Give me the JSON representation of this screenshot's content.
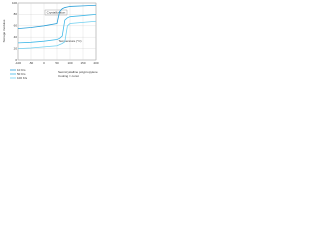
{
  "chart_data": {
    "type": "line",
    "y_label": "Storage modulus",
    "x_label": "Temperature (°C)",
    "annotation": "Crystallization",
    "note": [
      "Semicrystalline polypropylene",
      "Cooling = const"
    ],
    "x": [
      -100,
      -50,
      0,
      50,
      60,
      70,
      80,
      90,
      100,
      150,
      200
    ],
    "series": [
      {
        "name": "10 K/s",
        "color": "#2a9fd8",
        "values": [
          55,
          57,
          60,
          64,
          85,
          90,
          92,
          93,
          94,
          95,
          96
        ]
      },
      {
        "name": "50 K/s",
        "color": "#41b9e8",
        "values": [
          30,
          31,
          33,
          36,
          38,
          42,
          70,
          74,
          76,
          78,
          80
        ]
      },
      {
        "name": "100 K/s",
        "color": "#6fd0f0",
        "values": [
          20,
          21,
          23,
          25,
          27,
          29,
          32,
          60,
          64,
          66,
          68
        ]
      }
    ],
    "xlim": [
      -100,
      200
    ],
    "xticks": [
      -100,
      -50,
      0,
      50,
      100,
      150,
      200
    ],
    "ylim": [
      0,
      100
    ],
    "yticks": [
      0,
      20,
      40,
      60,
      80,
      100
    ],
    "grid": true
  }
}
